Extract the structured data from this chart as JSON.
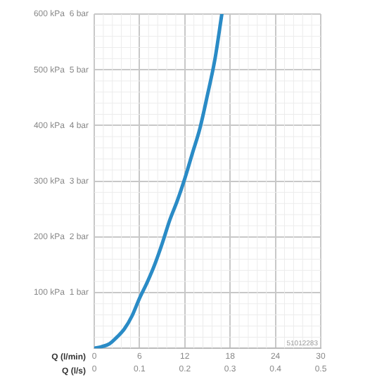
{
  "chart_data": {
    "type": "line",
    "xlabel": "Q (l/min)",
    "x2label": "Q (l/s)",
    "x": [
      0,
      1,
      2,
      3,
      4,
      5,
      6,
      7,
      8,
      9,
      10,
      11,
      12,
      13,
      14,
      15,
      16,
      16.9
    ],
    "series": [
      {
        "color": "#2a8bc6",
        "values": [
          0,
          3,
          8,
          20,
          35,
          58,
          90,
          118,
          150,
          188,
          230,
          265,
          305,
          350,
          395,
          455,
          520,
          600
        ]
      }
    ],
    "xlim": [
      0,
      30
    ],
    "xticks": [
      0,
      6,
      12,
      18,
      24,
      30
    ],
    "x2lim": [
      0,
      0.5
    ],
    "x2ticks": [
      0,
      0.1,
      0.2,
      0.3,
      0.4,
      0.5
    ],
    "ylim": [
      0,
      600
    ],
    "yticks": [
      {
        "value": 100,
        "label": "100 kPa"
      },
      {
        "value": 200,
        "label": "200 kPa"
      },
      {
        "value": 300,
        "label": "300 kPa"
      },
      {
        "value": 400,
        "label": "400 kPa"
      },
      {
        "value": 500,
        "label": "500 kPa"
      },
      {
        "value": 600,
        "label": "600 kPa"
      }
    ],
    "y2lim": [
      0,
      6
    ],
    "y2ticks": [
      {
        "value": 1,
        "label": "1 bar"
      },
      {
        "value": 2,
        "label": "2 bar"
      },
      {
        "value": 3,
        "label": "3 bar"
      },
      {
        "value": 4,
        "label": "4 bar"
      },
      {
        "value": 5,
        "label": "5 bar"
      },
      {
        "value": 6,
        "label": "6 bar"
      }
    ],
    "grid": true,
    "legend": false,
    "marker": "none",
    "line_style": "solid",
    "annotations": [
      "51012283"
    ]
  }
}
